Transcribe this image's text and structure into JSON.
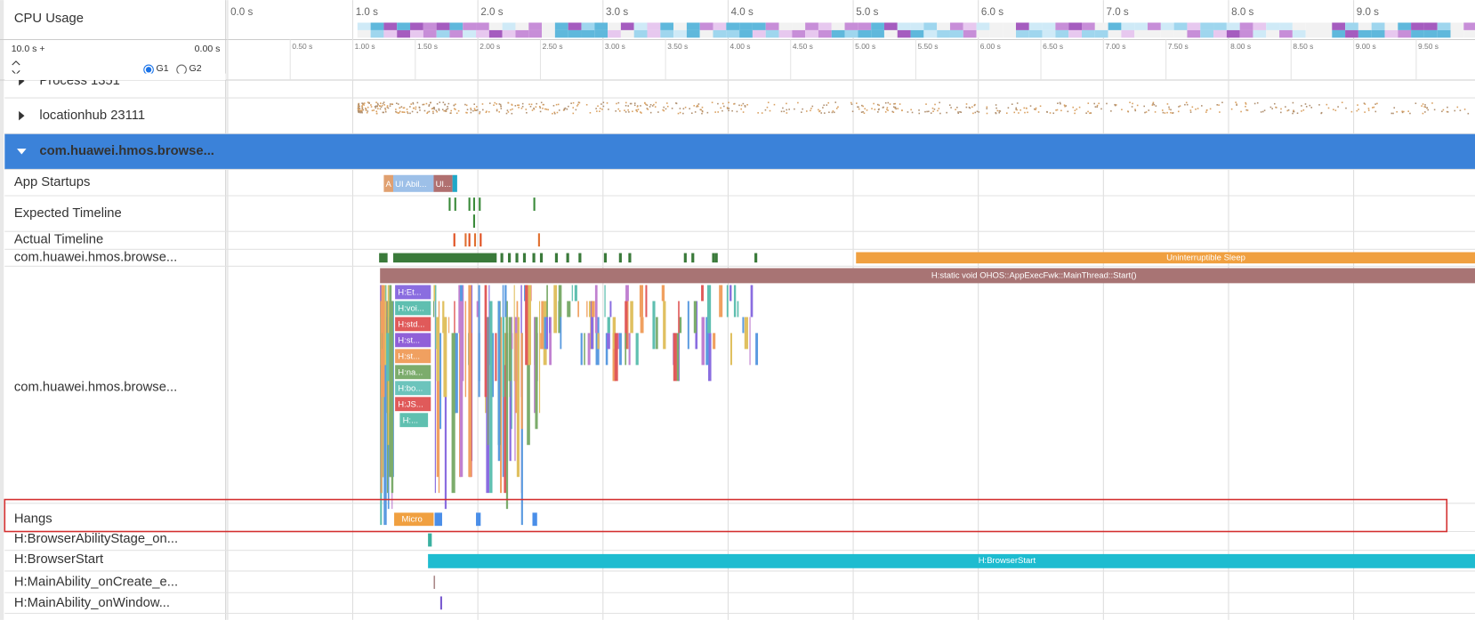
{
  "header": {
    "title": "CPU Usage",
    "duration": "10.0 s +",
    "offset": "0.00 s",
    "options": [
      "G1",
      "G2"
    ]
  },
  "ruler": {
    "seconds": [
      "0.0 s",
      "1.0 s",
      "2.0 s",
      "3.0 s",
      "4.0 s",
      "5.0 s",
      "6.0 s",
      "7.0 s",
      "8.0 s",
      "9.0 s"
    ],
    "half_seconds": [
      "0.50 s",
      "1.00 s",
      "1.50 s",
      "2.00 s",
      "2.50 s",
      "3.00 s",
      "3.50 s",
      "4.00 s",
      "4.50 s",
      "5.00 s",
      "5.50 s",
      "6.00 s",
      "6.50 s",
      "7.00 s",
      "7.50 s",
      "8.00 s",
      "8.50 s",
      "9.00 s",
      "9.50 s"
    ]
  },
  "rows": [
    "Process 1351",
    "locationhub 23111",
    "com.huawei.hmos.browse...",
    "App Startups",
    "Expected Timeline",
    "Actual Timeline",
    "com.huawei.hmos.browse...",
    "com.huawei.hmos.browse...",
    "Hangs",
    "H:BrowserAbilityStage_on...",
    "H:BrowserStart",
    "H:MainAbility_onCreate_e...",
    "H:MainAbility_onWindow..."
  ],
  "slices": {
    "app_startups": [
      "A",
      "UI Abil...",
      "UI..."
    ],
    "thread_state": "Uninterruptible Sleep",
    "main_thread": "H:static void OHOS::AppExecFwk::MainThread::Start()",
    "stack": [
      "H:Et...",
      "H:voi...",
      "H:std...",
      "H:st...",
      "H:st...",
      "H:na...",
      "H:bo...",
      "H:JS...",
      "H:..."
    ],
    "hangs": "Micro",
    "browser_start": "H:BrowserStart"
  }
}
